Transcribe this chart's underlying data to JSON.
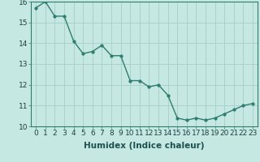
{
  "x": [
    0,
    1,
    2,
    3,
    4,
    5,
    6,
    7,
    8,
    9,
    10,
    11,
    12,
    13,
    14,
    15,
    16,
    17,
    18,
    19,
    20,
    21,
    22,
    23
  ],
  "y": [
    15.7,
    16.0,
    15.3,
    15.3,
    14.1,
    13.5,
    13.6,
    13.9,
    13.4,
    13.4,
    12.2,
    12.2,
    11.9,
    12.0,
    11.5,
    10.4,
    10.3,
    10.4,
    10.3,
    10.4,
    10.6,
    10.8,
    11.0,
    11.1
  ],
  "line_color": "#2e7d6e",
  "marker_color": "#2e7d6e",
  "bg_color": "#c6e8e2",
  "grid_color": "#a8ccc8",
  "xlabel": "Humidex (Indice chaleur)",
  "xlim": [
    -0.5,
    23.5
  ],
  "ylim": [
    10,
    16
  ],
  "yticks": [
    10,
    11,
    12,
    13,
    14,
    15,
    16
  ],
  "xticks": [
    0,
    1,
    2,
    3,
    4,
    5,
    6,
    7,
    8,
    9,
    10,
    11,
    12,
    13,
    14,
    15,
    16,
    17,
    18,
    19,
    20,
    21,
    22,
    23
  ],
  "xlabel_fontsize": 7.5,
  "tick_fontsize": 6.5,
  "marker_size": 2.5,
  "line_width": 1.0
}
